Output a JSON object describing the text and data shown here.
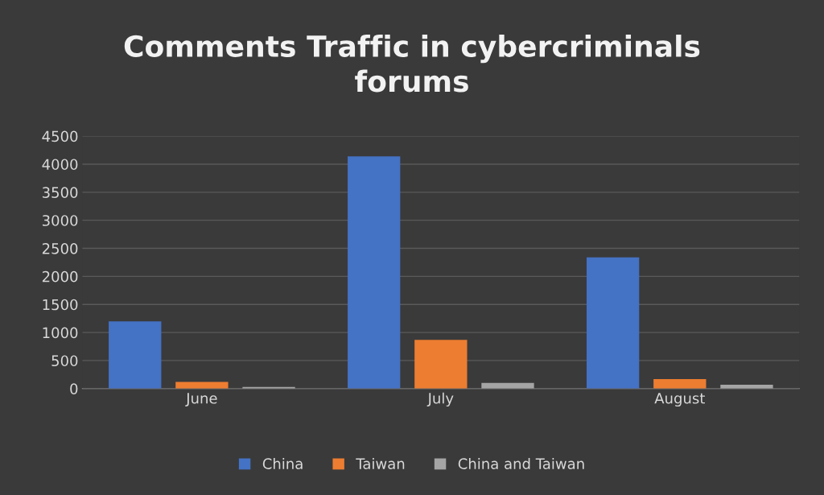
{
  "chart_data": {
    "type": "bar",
    "title": "Comments Traffic in cybercriminals\nforums",
    "categories": [
      "June",
      "July",
      "August"
    ],
    "series": [
      {
        "name": "China",
        "color": "#4472c4",
        "values": [
          1200,
          4140,
          2340
        ]
      },
      {
        "name": "Taiwan",
        "color": "#ed7d31",
        "values": [
          120,
          870,
          170
        ]
      },
      {
        "name": "China and Taiwan",
        "color": "#a5a5a5",
        "values": [
          30,
          100,
          70
        ]
      }
    ],
    "ylim": [
      0,
      4500
    ],
    "yticks": [
      0,
      500,
      1000,
      1500,
      2000,
      2500,
      3000,
      3500,
      4000,
      4500
    ],
    "grid": "y",
    "legend": "bottom"
  }
}
